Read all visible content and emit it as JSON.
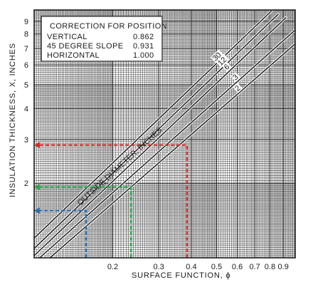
{
  "chart_data": {
    "type": "line",
    "xscale": "log",
    "yscale": "log",
    "xlim": [
      0.1,
      1.0
    ],
    "ylim": [
      1.0,
      10.0
    ],
    "grid": true,
    "xlabel": "SURFACE FUNCTION, ϕ",
    "ylabel": "INSULATION THICKNESS, X, INCHES",
    "x_ticks": [
      {
        "value": 0.2,
        "label": "0.2"
      },
      {
        "value": 0.3,
        "label": "0.3"
      },
      {
        "value": 0.4,
        "label": "0.4"
      },
      {
        "value": 0.5,
        "label": "0.5"
      },
      {
        "value": 0.6,
        "label": "0.6"
      },
      {
        "value": 0.7,
        "label": "0.7"
      },
      {
        "value": 0.8,
        "label": "0.8"
      },
      {
        "value": 0.9,
        "label": "0.9"
      }
    ],
    "y_ticks": [
      {
        "value": 2,
        "label": "2"
      },
      {
        "value": 3,
        "label": "3"
      },
      {
        "value": 4,
        "label": "4"
      },
      {
        "value": 5,
        "label": "5"
      },
      {
        "value": 6,
        "label": "6"
      },
      {
        "value": 7,
        "label": "7"
      },
      {
        "value": 8,
        "label": "8"
      },
      {
        "value": 9,
        "label": "9"
      }
    ],
    "curve_family_label": "OUTSIDE DIAMETER, INCHES",
    "series": [
      {
        "name": "30",
        "x": [
          0.1,
          0.81
        ],
        "y": [
          1.2,
          9.9
        ]
      },
      {
        "name": "12",
        "x": [
          0.1,
          0.86
        ],
        "y": [
          1.09,
          9.6
        ]
      },
      {
        "name": "6",
        "x": [
          0.1,
          0.92
        ],
        "y": [
          1.02,
          9.3
        ]
      },
      {
        "name": "3",
        "x": [
          0.105,
          1.0
        ],
        "y": [
          1.0,
          8.3
        ]
      },
      {
        "name": "2",
        "x": [
          0.115,
          1.0
        ],
        "y": [
          1.0,
          7.3
        ]
      }
    ],
    "correction_table": {
      "title": "CORRECTION FOR POSITION",
      "rows": [
        {
          "label": "VERTICAL",
          "value": "0.862"
        },
        {
          "label": "45 DEGREE SLOPE",
          "value": "0.931"
        },
        {
          "label": "HORIZONTAL",
          "value": "1.000"
        }
      ]
    },
    "annotations": [
      {
        "color": "#d42a2a",
        "x": 0.385,
        "y": 2.85
      },
      {
        "color": "#27a84a",
        "x": 0.235,
        "y": 1.93
      },
      {
        "color": "#2a6fb0",
        "x": 0.158,
        "y": 1.55
      }
    ]
  }
}
